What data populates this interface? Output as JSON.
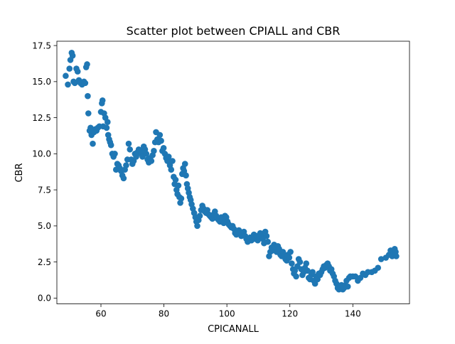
{
  "chart_data": {
    "type": "scatter",
    "title": "Scatter plot between CPIALL and CBR",
    "xlabel": "CPICANALL",
    "ylabel": "CBR",
    "xlim": [
      46,
      158
    ],
    "ylim": [
      -0.4,
      17.8
    ],
    "xticks": [
      60,
      80,
      100,
      120,
      140
    ],
    "yticks": [
      0.0,
      2.5,
      5.0,
      7.5,
      10.0,
      12.5,
      15.0,
      17.5
    ],
    "xtick_labels": [
      "60",
      "80",
      "100",
      "120",
      "140"
    ],
    "ytick_labels": [
      "0.0",
      "2.5",
      "5.0",
      "7.5",
      "10.0",
      "12.5",
      "15.0",
      "17.5"
    ],
    "grid": false,
    "marker_color": "#1f77b4",
    "series": [
      {
        "points": [
          [
            48.8,
            15.4
          ],
          [
            49.5,
            14.8
          ],
          [
            50.0,
            15.9
          ],
          [
            50.3,
            16.5
          ],
          [
            50.7,
            17.0
          ],
          [
            51.0,
            16.8
          ],
          [
            51.3,
            15.0
          ],
          [
            51.7,
            14.9
          ],
          [
            52.2,
            15.9
          ],
          [
            52.6,
            15.7
          ],
          [
            53.0,
            15.1
          ],
          [
            53.5,
            14.9
          ],
          [
            54.0,
            14.8
          ],
          [
            54.6,
            15.0
          ],
          [
            55.0,
            14.9
          ],
          [
            55.3,
            16.0
          ],
          [
            55.6,
            16.2
          ],
          [
            55.8,
            14.0
          ],
          [
            56.0,
            12.8
          ],
          [
            56.4,
            11.6
          ],
          [
            56.7,
            11.8
          ],
          [
            57.0,
            11.3
          ],
          [
            57.4,
            10.7
          ],
          [
            57.8,
            11.5
          ],
          [
            58.2,
            11.7
          ],
          [
            58.6,
            11.6
          ],
          [
            59.0,
            11.8
          ],
          [
            59.5,
            11.9
          ],
          [
            60.0,
            12.9
          ],
          [
            60.3,
            13.5
          ],
          [
            60.5,
            13.7
          ],
          [
            60.7,
            11.9
          ],
          [
            61.0,
            12.8
          ],
          [
            61.4,
            12.5
          ],
          [
            61.8,
            11.8
          ],
          [
            62.1,
            12.2
          ],
          [
            62.3,
            11.3
          ],
          [
            62.6,
            11.0
          ],
          [
            62.9,
            10.8
          ],
          [
            63.2,
            10.6
          ],
          [
            63.6,
            10.0
          ],
          [
            64.0,
            9.8
          ],
          [
            64.4,
            10.0
          ],
          [
            64.8,
            8.9
          ],
          [
            65.2,
            9.3
          ],
          [
            65.6,
            9.2
          ],
          [
            66.0,
            9.0
          ],
          [
            66.4,
            8.8
          ],
          [
            66.8,
            8.5
          ],
          [
            67.2,
            8.3
          ],
          [
            67.6,
            8.9
          ],
          [
            68.0,
            9.2
          ],
          [
            68.4,
            9.6
          ],
          [
            68.8,
            10.7
          ],
          [
            69.2,
            10.3
          ],
          [
            69.6,
            9.6
          ],
          [
            70.0,
            9.3
          ],
          [
            70.4,
            9.5
          ],
          [
            70.8,
            10.0
          ],
          [
            71.2,
            9.8
          ],
          [
            71.6,
            10.1
          ],
          [
            72.0,
            10.3
          ],
          [
            72.4,
            10.2
          ],
          [
            72.8,
            10.0
          ],
          [
            73.2,
            9.8
          ],
          [
            73.6,
            10.5
          ],
          [
            74.0,
            10.3
          ],
          [
            74.4,
            10.0
          ],
          [
            74.8,
            9.6
          ],
          [
            75.2,
            9.4
          ],
          [
            75.6,
            9.7
          ],
          [
            76.0,
            9.5
          ],
          [
            76.4,
            9.9
          ],
          [
            76.8,
            10.2
          ],
          [
            77.2,
            10.8
          ],
          [
            77.5,
            11.5
          ],
          [
            77.9,
            11.0
          ],
          [
            78.3,
            10.8
          ],
          [
            78.7,
            11.3
          ],
          [
            79.1,
            10.9
          ],
          [
            79.5,
            10.2
          ],
          [
            79.9,
            10.4
          ],
          [
            80.3,
            10.0
          ],
          [
            80.7,
            9.7
          ],
          [
            81.1,
            9.5
          ],
          [
            81.5,
            9.8
          ],
          [
            81.9,
            9.2
          ],
          [
            82.3,
            8.9
          ],
          [
            82.7,
            9.5
          ],
          [
            83.1,
            8.4
          ],
          [
            83.4,
            7.9
          ],
          [
            83.7,
            8.2
          ],
          [
            84.0,
            7.5
          ],
          [
            84.3,
            7.2
          ],
          [
            84.6,
            7.8
          ],
          [
            84.9,
            7.0
          ],
          [
            85.2,
            6.6
          ],
          [
            85.5,
            6.9
          ],
          [
            85.8,
            8.6
          ],
          [
            86.1,
            9.0
          ],
          [
            86.4,
            8.8
          ],
          [
            86.7,
            9.3
          ],
          [
            87.0,
            8.5
          ],
          [
            87.3,
            7.9
          ],
          [
            87.6,
            7.6
          ],
          [
            87.9,
            7.3
          ],
          [
            88.2,
            7.0
          ],
          [
            88.5,
            6.8
          ],
          [
            88.8,
            6.5
          ],
          [
            89.2,
            6.2
          ],
          [
            89.6,
            5.9
          ],
          [
            90.0,
            5.6
          ],
          [
            90.3,
            5.3
          ],
          [
            90.6,
            5.0
          ],
          [
            91.0,
            5.4
          ],
          [
            91.4,
            5.7
          ],
          [
            91.8,
            6.1
          ],
          [
            92.2,
            6.4
          ],
          [
            92.6,
            6.2
          ],
          [
            93.0,
            6.0
          ],
          [
            93.4,
            5.9
          ],
          [
            93.8,
            6.1
          ],
          [
            94.2,
            5.8
          ],
          [
            94.6,
            5.7
          ],
          [
            95.0,
            5.6
          ],
          [
            95.4,
            5.5
          ],
          [
            95.8,
            5.8
          ],
          [
            96.2,
            6.0
          ],
          [
            96.6,
            5.7
          ],
          [
            97.0,
            5.5
          ],
          [
            97.4,
            5.4
          ],
          [
            97.8,
            5.3
          ],
          [
            98.2,
            5.6
          ],
          [
            98.6,
            5.5
          ],
          [
            99.0,
            5.2
          ],
          [
            99.4,
            5.7
          ],
          [
            99.8,
            5.6
          ],
          [
            100.2,
            5.3
          ],
          [
            100.6,
            5.1
          ],
          [
            101.0,
            5.0
          ],
          [
            101.4,
            4.9
          ],
          [
            101.8,
            5.0
          ],
          [
            102.2,
            4.8
          ],
          [
            102.6,
            4.5
          ],
          [
            103.0,
            4.4
          ],
          [
            103.4,
            4.6
          ],
          [
            103.8,
            4.7
          ],
          [
            104.2,
            4.5
          ],
          [
            104.6,
            4.3
          ],
          [
            105.0,
            4.4
          ],
          [
            105.4,
            4.6
          ],
          [
            105.8,
            4.3
          ],
          [
            106.2,
            4.1
          ],
          [
            106.6,
            3.9
          ],
          [
            107.0,
            4.0
          ],
          [
            107.4,
            4.2
          ],
          [
            107.8,
            4.0
          ],
          [
            108.2,
            4.2
          ],
          [
            108.6,
            4.4
          ],
          [
            109.0,
            4.1
          ],
          [
            109.4,
            4.3
          ],
          [
            109.8,
            4.0
          ],
          [
            110.2,
            4.2
          ],
          [
            110.6,
            4.5
          ],
          [
            111.0,
            4.3
          ],
          [
            111.4,
            4.1
          ],
          [
            111.8,
            3.8
          ],
          [
            112.2,
            4.6
          ],
          [
            112.6,
            4.3
          ],
          [
            113.0,
            3.9
          ],
          [
            113.4,
            2.9
          ],
          [
            113.8,
            3.2
          ],
          [
            114.2,
            3.5
          ],
          [
            114.6,
            3.3
          ],
          [
            115.0,
            3.7
          ],
          [
            115.4,
            3.5
          ],
          [
            115.8,
            3.2
          ],
          [
            116.2,
            3.6
          ],
          [
            116.6,
            3.4
          ],
          [
            117.0,
            3.0
          ],
          [
            117.4,
            2.9
          ],
          [
            117.8,
            3.2
          ],
          [
            118.2,
            3.0
          ],
          [
            118.6,
            2.7
          ],
          [
            119.0,
            2.6
          ],
          [
            119.4,
            3.0
          ],
          [
            119.8,
            2.8
          ],
          [
            120.2,
            3.2
          ],
          [
            120.6,
            2.4
          ],
          [
            121.0,
            2.0
          ],
          [
            121.3,
            1.7
          ],
          [
            121.6,
            1.9
          ],
          [
            122.0,
            1.5
          ],
          [
            122.4,
            2.2
          ],
          [
            122.8,
            2.7
          ],
          [
            123.2,
            2.5
          ],
          [
            123.6,
            2.0
          ],
          [
            124.0,
            1.6
          ],
          [
            124.4,
            1.8
          ],
          [
            124.8,
            2.1
          ],
          [
            125.2,
            2.4
          ],
          [
            125.6,
            1.9
          ],
          [
            126.0,
            1.4
          ],
          [
            126.4,
            1.3
          ],
          [
            126.8,
            1.6
          ],
          [
            127.2,
            1.8
          ],
          [
            127.6,
            1.2
          ],
          [
            128.0,
            1.0
          ],
          [
            128.4,
            1.5
          ],
          [
            128.8,
            1.3
          ],
          [
            129.2,
            1.7
          ],
          [
            129.6,
            1.6
          ],
          [
            130.0,
            1.8
          ],
          [
            130.4,
            2.0
          ],
          [
            130.8,
            2.2
          ],
          [
            131.2,
            2.1
          ],
          [
            131.6,
            2.3
          ],
          [
            132.0,
            2.4
          ],
          [
            132.4,
            2.2
          ],
          [
            132.8,
            1.9
          ],
          [
            133.2,
            2.0
          ],
          [
            133.6,
            1.7
          ],
          [
            134.0,
            1.5
          ],
          [
            134.4,
            1.2
          ],
          [
            134.8,
            1.0
          ],
          [
            135.2,
            0.7
          ],
          [
            135.6,
            0.6
          ],
          [
            136.0,
            0.8
          ],
          [
            136.4,
            0.9
          ],
          [
            136.8,
            0.6
          ],
          [
            137.2,
            0.7
          ],
          [
            137.6,
            0.9
          ],
          [
            138.0,
            1.2
          ],
          [
            138.4,
            0.8
          ],
          [
            138.8,
            1.4
          ],
          [
            139.2,
            1.5
          ],
          [
            140.0,
            1.5
          ],
          [
            140.8,
            1.5
          ],
          [
            141.6,
            1.2
          ],
          [
            142.4,
            1.4
          ],
          [
            143.2,
            1.7
          ],
          [
            144.0,
            1.6
          ],
          [
            144.8,
            1.8
          ],
          [
            146.0,
            1.8
          ],
          [
            147.0,
            1.9
          ],
          [
            148.0,
            2.1
          ],
          [
            149.0,
            2.7
          ],
          [
            150.5,
            2.8
          ],
          [
            151.5,
            3.0
          ],
          [
            152.0,
            3.3
          ],
          [
            152.5,
            2.9
          ],
          [
            153.0,
            3.1
          ],
          [
            153.3,
            3.4
          ],
          [
            153.6,
            3.2
          ],
          [
            153.8,
            2.9
          ]
        ]
      }
    ]
  }
}
